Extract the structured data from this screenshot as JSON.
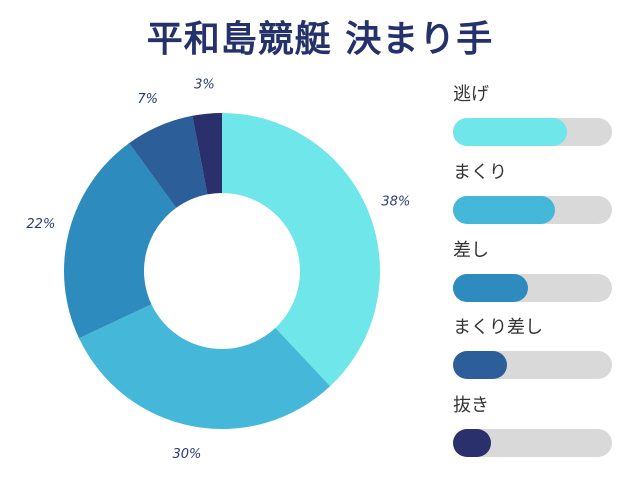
{
  "title": "平和島競艇 決まり手",
  "chart_data": {
    "type": "pie",
    "donut": true,
    "slices": [
      {
        "label": "逃げ",
        "value": 38,
        "value_label": "38%",
        "color": "#6ee6ea"
      },
      {
        "label": "まくり",
        "value": 30,
        "value_label": "30%",
        "color": "#45b8da"
      },
      {
        "label": "差し",
        "value": 22,
        "value_label": "22%",
        "color": "#2d8bbd"
      },
      {
        "label": "まくり差し",
        "value": 7,
        "value_label": "7%",
        "color": "#2c5e9a"
      },
      {
        "label": "抜き",
        "value": 3,
        "value_label": "3%",
        "color": "#29306b"
      }
    ],
    "legend_placement": "right",
    "legend": [
      {
        "label": "逃げ",
        "fill": 0.72,
        "color": "#6ee6ea"
      },
      {
        "label": "まくり",
        "fill": 0.64,
        "color": "#45b8da"
      },
      {
        "label": "差し",
        "fill": 0.47,
        "color": "#2d8bbd"
      },
      {
        "label": "まくり差し",
        "fill": 0.34,
        "color": "#2c5e9a"
      },
      {
        "label": "抜き",
        "fill": 0.24,
        "color": "#29306b"
      }
    ],
    "track_color": "#d9d9d9"
  }
}
